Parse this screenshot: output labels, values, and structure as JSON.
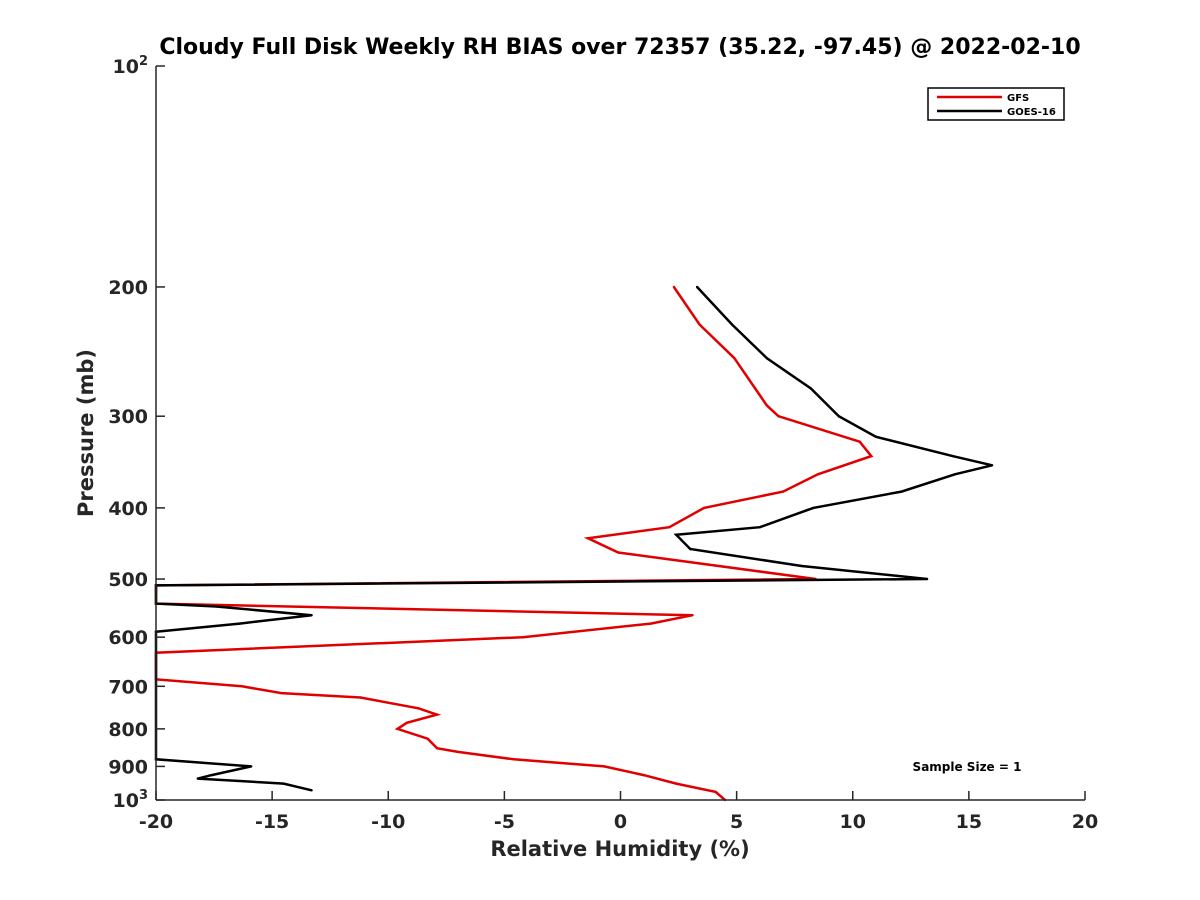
{
  "chart_data": {
    "type": "line",
    "title": "Cloudy Full Disk Weekly RH BIAS over 72357 (35.22, -97.45) @ 2022-02-10",
    "xlabel": "Relative Humidity (%)",
    "ylabel": "Pressure (mb)",
    "xlim": [
      -20,
      20
    ],
    "ylim": [
      100,
      1000
    ],
    "y_scale": "log",
    "y_reversed": true,
    "grid": false,
    "legend_position": "top-right",
    "x_ticks": [
      {
        "value": -20,
        "label": "-20"
      },
      {
        "value": -15,
        "label": "-15"
      },
      {
        "value": -10,
        "label": "-10"
      },
      {
        "value": -5,
        "label": "-5"
      },
      {
        "value": 0,
        "label": "0"
      },
      {
        "value": 5,
        "label": "5"
      },
      {
        "value": 10,
        "label": "10"
      },
      {
        "value": 15,
        "label": "15"
      },
      {
        "value": 20,
        "label": "20"
      }
    ],
    "y_ticks": [
      {
        "value": 100,
        "base": "10",
        "exp": "2"
      },
      {
        "value": 200,
        "base": "200",
        "exp": ""
      },
      {
        "value": 300,
        "base": "300",
        "exp": ""
      },
      {
        "value": 400,
        "base": "400",
        "exp": ""
      },
      {
        "value": 500,
        "base": "500",
        "exp": ""
      },
      {
        "value": 600,
        "base": "600",
        "exp": ""
      },
      {
        "value": 700,
        "base": "700",
        "exp": ""
      },
      {
        "value": 800,
        "base": "800",
        "exp": ""
      },
      {
        "value": 900,
        "base": "900",
        "exp": ""
      },
      {
        "value": 1000,
        "base": "10",
        "exp": "3"
      }
    ],
    "series": [
      {
        "name": "GFS",
        "color": "#e00000",
        "points": [
          [
            2.3,
            200
          ],
          [
            3.4,
            225
          ],
          [
            4.9,
            250
          ],
          [
            5.8,
            275
          ],
          [
            6.3,
            290
          ],
          [
            6.8,
            300
          ],
          [
            10.3,
            325
          ],
          [
            10.8,
            340
          ],
          [
            8.5,
            360
          ],
          [
            7.0,
            380
          ],
          [
            3.6,
            400
          ],
          [
            2.1,
            425
          ],
          [
            -1.4,
            440
          ],
          [
            -0.1,
            460
          ],
          [
            8.4,
            500
          ],
          [
            -20.0,
            510
          ],
          [
            -20.0,
            540
          ],
          [
            3.1,
            560
          ],
          [
            1.3,
            575
          ],
          [
            -4.2,
            600
          ],
          [
            -20.0,
            630
          ],
          [
            -20.0,
            685
          ],
          [
            -16.3,
            700
          ],
          [
            -14.6,
            715
          ],
          [
            -11.2,
            725
          ],
          [
            -8.7,
            750
          ],
          [
            -7.9,
            765
          ],
          [
            -9.2,
            785
          ],
          [
            -9.6,
            800
          ],
          [
            -8.3,
            825
          ],
          [
            -7.9,
            850
          ],
          [
            -7.0,
            860
          ],
          [
            -4.6,
            880
          ],
          [
            -0.7,
            900
          ],
          [
            1.0,
            925
          ],
          [
            2.4,
            950
          ],
          [
            4.1,
            975
          ],
          [
            4.5,
            1000
          ]
        ]
      },
      {
        "name": "GOES-16",
        "color": "#000000",
        "points": [
          [
            3.3,
            200
          ],
          [
            4.8,
            225
          ],
          [
            6.3,
            250
          ],
          [
            8.2,
            275
          ],
          [
            9.4,
            300
          ],
          [
            11.0,
            320
          ],
          [
            14.3,
            340
          ],
          [
            16.0,
            350
          ],
          [
            14.4,
            360
          ],
          [
            12.1,
            380
          ],
          [
            8.3,
            400
          ],
          [
            6.0,
            425
          ],
          [
            2.4,
            435
          ],
          [
            3.0,
            455
          ],
          [
            7.8,
            480
          ],
          [
            13.2,
            500
          ],
          [
            -20.0,
            510
          ],
          [
            -20.0,
            540
          ],
          [
            -17.4,
            545
          ],
          [
            -13.3,
            560
          ],
          [
            -16.4,
            575
          ],
          [
            -20.0,
            590
          ],
          [
            -20.0,
            880
          ],
          [
            -15.9,
            900
          ],
          [
            -17.6,
            925
          ],
          [
            -18.2,
            935
          ],
          [
            -14.5,
            950
          ],
          [
            -13.3,
            970
          ]
        ]
      }
    ],
    "annotations": [
      {
        "text": "Sample Size = 1"
      }
    ]
  }
}
